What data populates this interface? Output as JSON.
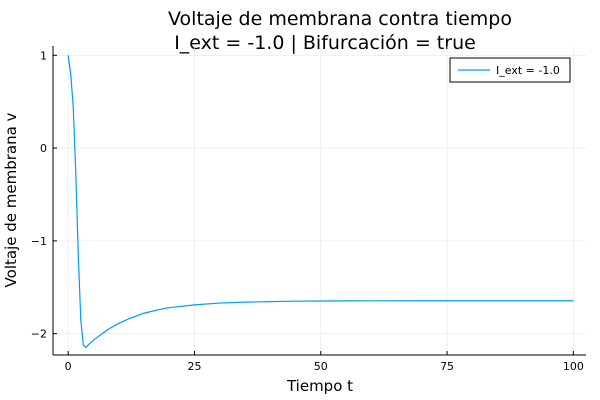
{
  "chart_data": {
    "type": "line",
    "title": "Voltaje de membrana contra tiempo",
    "subtitle": "I_ext = -1.0 | Bifurcación = true",
    "xlabel": "Tiempo t",
    "ylabel": "Voltaje de membrana v",
    "xlim": [
      -3,
      102.5
    ],
    "ylim": [
      -2.23,
      1.1
    ],
    "xticks": [
      0,
      25,
      50,
      75,
      100
    ],
    "xtick_labels": [
      "0",
      "25",
      "50",
      "75",
      "100"
    ],
    "yticks": [
      1,
      0,
      -1,
      -2
    ],
    "ytick_labels": [
      "1",
      "0",
      "−1",
      "−2"
    ],
    "grid": true,
    "legend_position": "top-right",
    "series": [
      {
        "name": "I_ext = -1.0",
        "color": "#009AFA",
        "x": [
          0,
          0.5,
          1,
          1.5,
          2,
          2.5,
          3,
          3.5,
          4,
          5,
          6,
          7,
          8,
          10,
          12,
          15,
          18,
          20,
          25,
          30,
          35,
          40,
          45,
          50,
          55,
          60,
          70,
          80,
          90,
          100
        ],
        "y": [
          1.0,
          0.8,
          0.45,
          -0.25,
          -1.15,
          -1.85,
          -2.12,
          -2.15,
          -2.12,
          -2.07,
          -2.03,
          -1.99,
          -1.95,
          -1.89,
          -1.84,
          -1.78,
          -1.74,
          -1.72,
          -1.69,
          -1.67,
          -1.66,
          -1.655,
          -1.65,
          -1.648,
          -1.647,
          -1.646,
          -1.645,
          -1.645,
          -1.645,
          -1.645
        ]
      }
    ]
  }
}
